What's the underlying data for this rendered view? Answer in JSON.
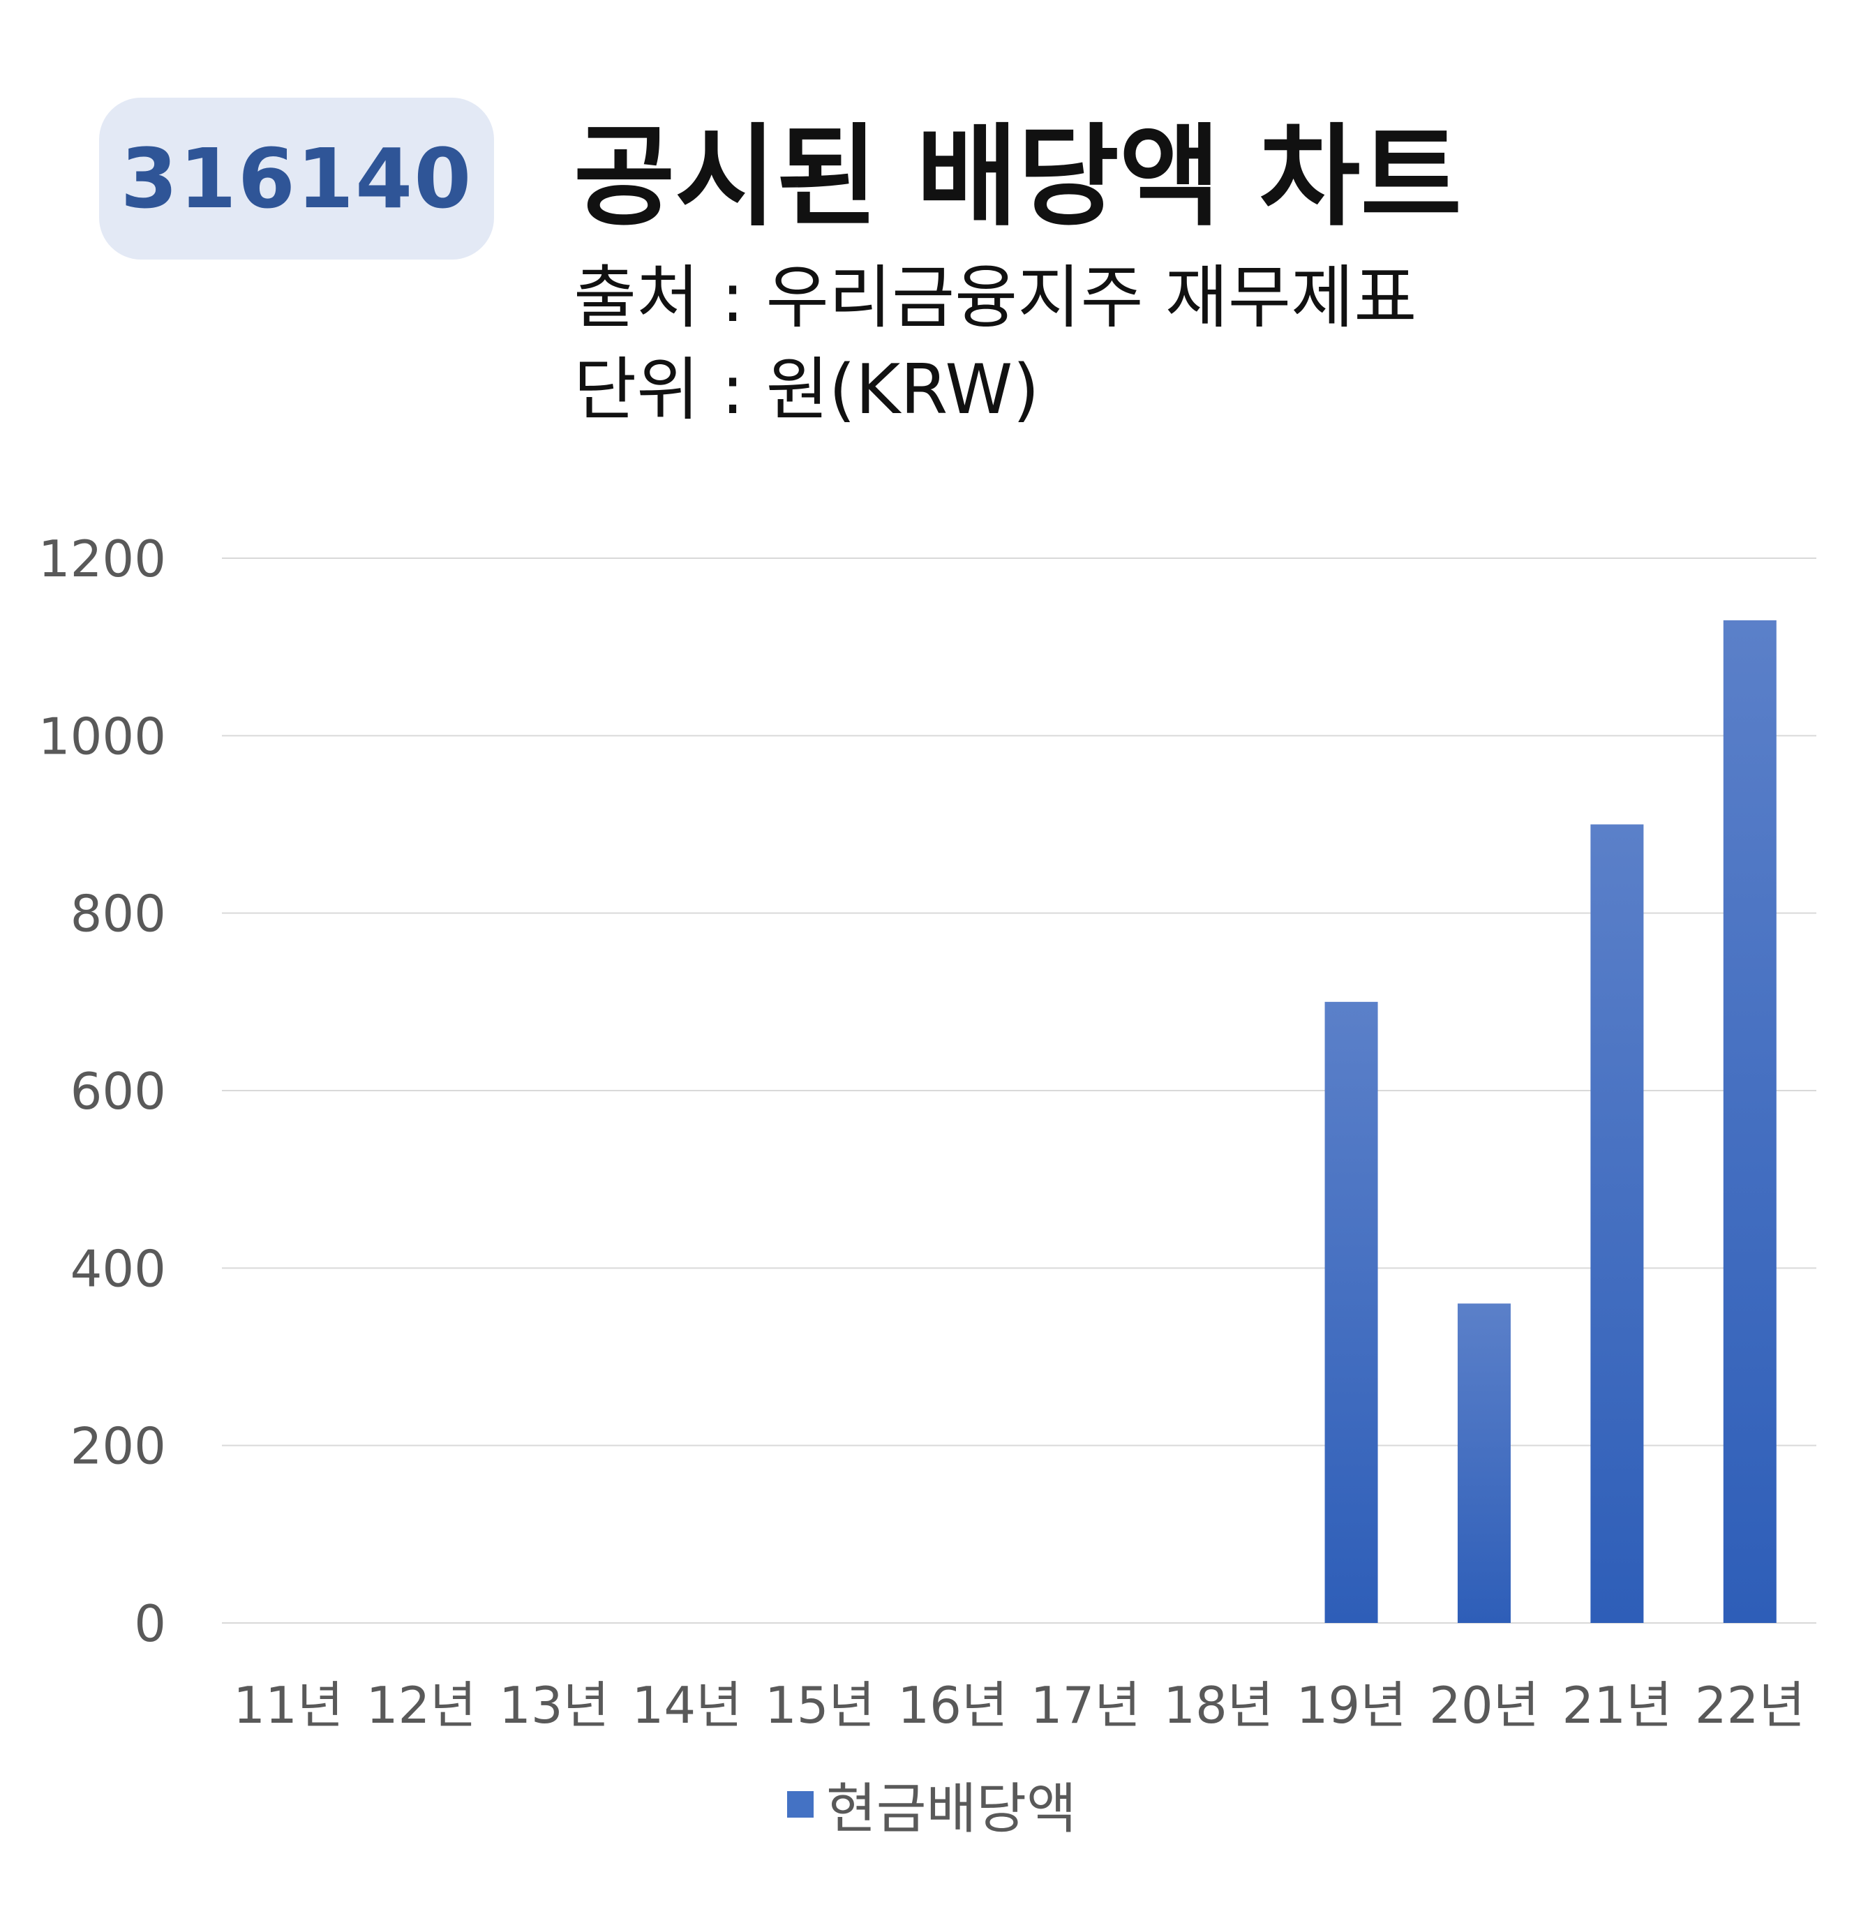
{
  "badge": {
    "code": "316140"
  },
  "header": {
    "title": "공시된 배당액 차트",
    "source": "출처 : 우리금융지주 재무제표",
    "unit": "단위 : 원(KRW)"
  },
  "chart_data": {
    "type": "bar",
    "categories": [
      "11년",
      "12년",
      "13년",
      "14년",
      "15년",
      "16년",
      "17년",
      "18년",
      "19년",
      "20년",
      "21년",
      "22년"
    ],
    "series": [
      {
        "name": "현금배당액",
        "values": [
          0,
          0,
          0,
          0,
          0,
          0,
          0,
          0,
          700,
          360,
          900,
          1130
        ]
      }
    ],
    "yticks": [
      0,
      200,
      400,
      600,
      800,
      1000,
      1200
    ],
    "ylim": [
      0,
      1200
    ],
    "grid": true,
    "legend": "bottom",
    "colors": {
      "bar_top": "#5b80c9",
      "bar_bottom": "#2e5eb8",
      "grid": "#d9d9d9",
      "tick_label": "#595959",
      "legend_swatch": "#4472c4"
    }
  }
}
